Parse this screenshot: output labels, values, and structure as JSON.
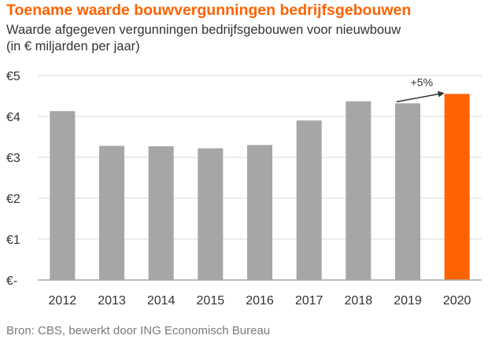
{
  "title": "Toename waarde bouwvergunningen bedrijfsgebouwen",
  "subtitle_line1": "Waarde afgegeven vergunningen bedrijfsgebouwen voor nieuwbouw",
  "subtitle_line2": "(in € miljarden per jaar)",
  "source": "Bron: CBS, bewerkt door ING Economisch Bureau",
  "colors": {
    "bar": "#a6a6a6",
    "highlight": "#ff6200",
    "grid": "#d9d9d9",
    "axis": "#a6a6a6"
  },
  "chart_data": {
    "type": "bar",
    "categories": [
      "2012",
      "2013",
      "2014",
      "2015",
      "2016",
      "2017",
      "2018",
      "2019",
      "2020"
    ],
    "values": [
      4.13,
      3.28,
      3.27,
      3.22,
      3.3,
      3.9,
      4.37,
      4.32,
      4.55
    ],
    "highlight_category": "2020",
    "ylim": [
      0,
      5
    ],
    "yticks": [
      0,
      1,
      2,
      3,
      4,
      5
    ],
    "ytick_labels": [
      "€-",
      "€1",
      "€2",
      "€3",
      "€4",
      "€5"
    ],
    "grid": true,
    "annotation": {
      "text": "+5%",
      "from": "2019",
      "to": "2020"
    }
  }
}
